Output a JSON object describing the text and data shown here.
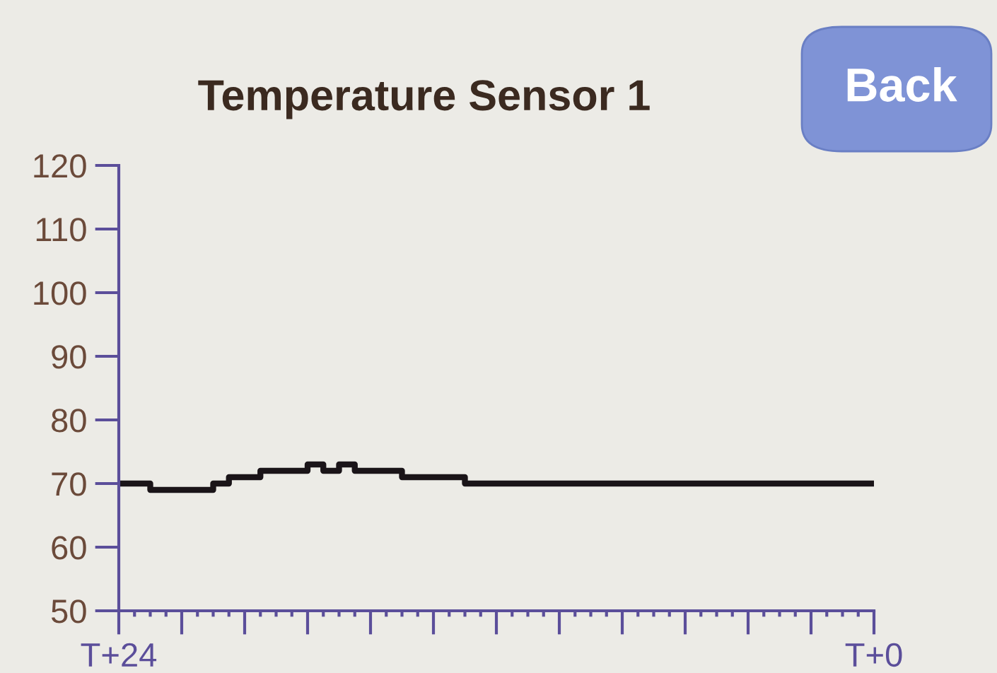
{
  "chart_data": {
    "type": "step",
    "title": "Temperature Sensor 1",
    "annotations": [
      "Back"
    ],
    "categories": [
      "T+24",
      null,
      null,
      null,
      null,
      null,
      null,
      null,
      null,
      null,
      null,
      null,
      null,
      null,
      null,
      null,
      null,
      null,
      null,
      null,
      null,
      null,
      null,
      null,
      null,
      null,
      null,
      null,
      null,
      null,
      null,
      null,
      null,
      null,
      null,
      null,
      null,
      null,
      null,
      null,
      null,
      null,
      null,
      null,
      null,
      null,
      null,
      null,
      "T+0"
    ],
    "series": [
      {
        "color": "#1a1418",
        "values": [
          70,
          70,
          69,
          69,
          69,
          69,
          70,
          71,
          71,
          72,
          72,
          72,
          73,
          72,
          73,
          72,
          72,
          72,
          71,
          71,
          71,
          71,
          70,
          70,
          70,
          70,
          70,
          70,
          70,
          70,
          70,
          70,
          70,
          70,
          70,
          70,
          70,
          70,
          70,
          70,
          70,
          70,
          70,
          70,
          70,
          70,
          70,
          70,
          70
        ]
      }
    ],
    "ylim": [
      50,
      120
    ],
    "yticks": [
      50,
      60,
      70,
      80,
      90,
      100,
      110,
      120
    ],
    "grid": false,
    "legend": false
  }
}
